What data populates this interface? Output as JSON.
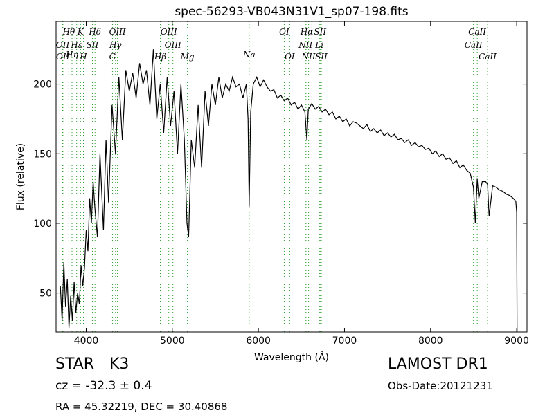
{
  "chart_data": {
    "type": "line",
    "title": "spec-56293-VB043N31V1_sp07-198.fits",
    "xlabel": "Wavelength (Å)",
    "ylabel": "Flux (relative)",
    "xlim": [
      3650,
      9120
    ],
    "ylim": [
      22,
      245
    ],
    "x_ticks": [
      4000,
      5000,
      6000,
      7000,
      8000,
      9000
    ],
    "x_tick_labels": [
      "4000",
      "5000",
      "6000",
      "7000",
      "8000",
      "9000"
    ],
    "y_ticks": [
      50,
      100,
      150,
      200
    ],
    "y_tick_labels": [
      "50",
      "100",
      "150",
      "200"
    ],
    "grid": false,
    "colors": {
      "spectrum": "#000000",
      "lines": "#2ca02c"
    },
    "series": [
      {
        "values_anchor_note": "",
        "x": [
          3700,
          3720,
          3740,
          3760,
          3780,
          3800,
          3820,
          3840,
          3860,
          3880,
          3900,
          3920,
          3940,
          3960,
          3980,
          4000,
          4020,
          4040,
          4060,
          4080,
          4100,
          4130,
          4160,
          4200,
          4230,
          4260,
          4300,
          4340,
          4380,
          4420,
          4460,
          4500,
          4540,
          4580,
          4620,
          4660,
          4700,
          4740,
          4780,
          4820,
          4860,
          4900,
          4940,
          4980,
          5020,
          5060,
          5100,
          5140,
          5170,
          5190,
          5220,
          5260,
          5300,
          5340,
          5380,
          5420,
          5460,
          5500,
          5540,
          5580,
          5620,
          5660,
          5700,
          5740,
          5780,
          5820,
          5860,
          5880,
          5893,
          5910,
          5940,
          5980,
          6020,
          6060,
          6100,
          6140,
          6180,
          6220,
          6260,
          6300,
          6340,
          6380,
          6420,
          6460,
          6500,
          6540,
          6563,
          6580,
          6620,
          6660,
          6700,
          6740,
          6780,
          6820,
          6860,
          6900,
          6940,
          6980,
          7020,
          7060,
          7100,
          7140,
          7180,
          7220,
          7260,
          7300,
          7340,
          7380,
          7420,
          7460,
          7500,
          7540,
          7580,
          7620,
          7660,
          7700,
          7740,
          7780,
          7820,
          7860,
          7900,
          7940,
          7980,
          8020,
          8060,
          8100,
          8140,
          8180,
          8220,
          8260,
          8300,
          8340,
          8380,
          8420,
          8460,
          8498,
          8520,
          8542,
          8560,
          8600,
          8640,
          8662,
          8680,
          8720,
          8760,
          8800,
          8840,
          8880,
          8920,
          8960,
          8990,
          9000,
          9005
        ],
        "y": [
          55,
          30,
          72,
          40,
          60,
          25,
          48,
          30,
          58,
          36,
          50,
          42,
          70,
          55,
          68,
          95,
          80,
          118,
          100,
          130,
          112,
          90,
          150,
          95,
          160,
          115,
          185,
          150,
          205,
          160,
          210,
          195,
          208,
          190,
          215,
          200,
          210,
          185,
          225,
          175,
          200,
          165,
          205,
          170,
          195,
          150,
          200,
          160,
          100,
          90,
          160,
          140,
          185,
          140,
          195,
          170,
          200,
          185,
          205,
          190,
          200,
          195,
          205,
          198,
          200,
          190,
          200,
          175,
          112,
          180,
          200,
          205,
          198,
          203,
          198,
          195,
          196,
          190,
          192,
          188,
          190,
          185,
          187,
          182,
          185,
          180,
          160,
          182,
          186,
          182,
          184,
          180,
          182,
          178,
          180,
          175,
          177,
          173,
          175,
          170,
          173,
          172,
          170,
          168,
          171,
          166,
          168,
          165,
          167,
          163,
          165,
          162,
          164,
          160,
          161,
          158,
          160,
          156,
          158,
          155,
          156,
          153,
          154,
          150,
          152,
          148,
          150,
          146,
          147,
          143,
          145,
          140,
          142,
          138,
          136,
          126,
          100,
          132,
          118,
          130,
          130,
          128,
          105,
          127,
          126,
          124,
          123,
          121,
          120,
          118,
          116,
          108,
          22
        ]
      }
    ],
    "spectral_lines": [
      {
        "label": "Hθ",
        "x": 3798,
        "row": 1
      },
      {
        "label": "K",
        "x": 3934,
        "row": 1
      },
      {
        "label": "Hδ",
        "x": 4102,
        "row": 1
      },
      {
        "label": "OIII",
        "x": 4363,
        "row": 1
      },
      {
        "label": "OIII",
        "x": 4959,
        "row": 1
      },
      {
        "label": "OI",
        "x": 6300,
        "row": 1
      },
      {
        "label": "Hα",
        "x": 6563,
        "row": 1
      },
      {
        "label": "SII",
        "x": 6717,
        "row": 1
      },
      {
        "label": "CaII",
        "x": 8542,
        "row": 1
      },
      {
        "label": "OII",
        "x": 3727,
        "row": 2
      },
      {
        "label": "Hε",
        "x": 3889,
        "row": 2
      },
      {
        "label": "SII",
        "x": 4072,
        "row": 2
      },
      {
        "label": "Hγ",
        "x": 4340,
        "row": 2
      },
      {
        "label": "OIII",
        "x": 5007,
        "row": 2
      },
      {
        "label": "NII",
        "x": 6548,
        "row": 2
      },
      {
        "label": "Li",
        "x": 6708,
        "row": 2
      },
      {
        "label": "CaII",
        "x": 8498,
        "row": 2
      },
      {
        "label": "Hη",
        "x": 3835,
        "row": 3
      },
      {
        "label": "OII",
        "x": 3729,
        "row": 4
      },
      {
        "label": "H",
        "x": 3968,
        "row": 4
      },
      {
        "label": "G",
        "x": 4305,
        "row": 4
      },
      {
        "label": "Hβ",
        "x": 4861,
        "row": 4
      },
      {
        "label": "Mg",
        "x": 5175,
        "row": 4
      },
      {
        "label": "Na",
        "x": 5893,
        "row": 3
      },
      {
        "label": "OI",
        "x": 6364,
        "row": 4
      },
      {
        "label": "NII",
        "x": 6583,
        "row": 4
      },
      {
        "label": "SII",
        "x": 6731,
        "row": 4
      },
      {
        "label": "CaII",
        "x": 8662,
        "row": 4
      }
    ]
  },
  "info": {
    "object_class": "STAR",
    "subclass": "K3",
    "survey": "LAMOST DR1",
    "redshift": "cz = -32.3 ± 0.4",
    "obs_date": "Obs-Date:20121231",
    "coords": "RA = 45.32219, DEC = 30.40868"
  }
}
